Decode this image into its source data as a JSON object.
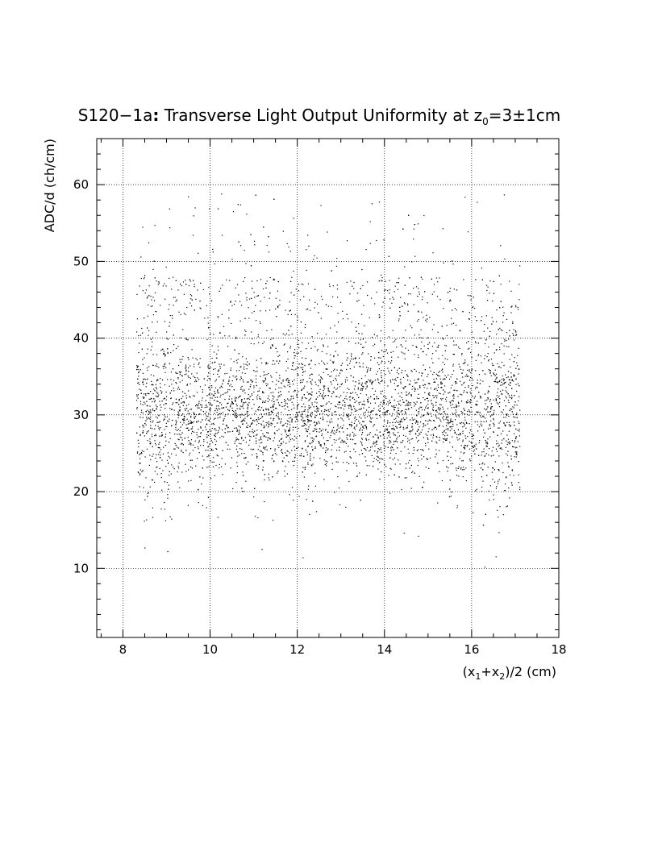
{
  "chart_data": {
    "type": "scatter",
    "title_main": "S120−1a",
    "title_colon": ":",
    "title_rest": " Transverse Light Output Uniformity at z",
    "title_sub": "0",
    "title_end": "=3±1cm",
    "xlabel_a": "(x",
    "xlabel_sub1": "1",
    "xlabel_b": "+x",
    "xlabel_sub2": "2",
    "xlabel_c": ")/2 (cm)",
    "ylabel": "ADC/d (ch/cm)",
    "xlim": [
      7.4,
      18
    ],
    "ylim": [
      1,
      66
    ],
    "x_ticks": [
      "8",
      "10",
      "12",
      "14",
      "16",
      "18"
    ],
    "y_ticks": [
      "10",
      "20",
      "30",
      "40",
      "50",
      "60"
    ],
    "grid": true,
    "distribution": {
      "x_range": [
        8.3,
        17.1
      ],
      "core_mean": 30,
      "core_spread": 4,
      "halo_y_range": [
        10,
        59
      ],
      "n_points": 5200
    },
    "colors": {
      "points": "#000000",
      "grid": "#000000",
      "background": "#ffffff"
    }
  }
}
